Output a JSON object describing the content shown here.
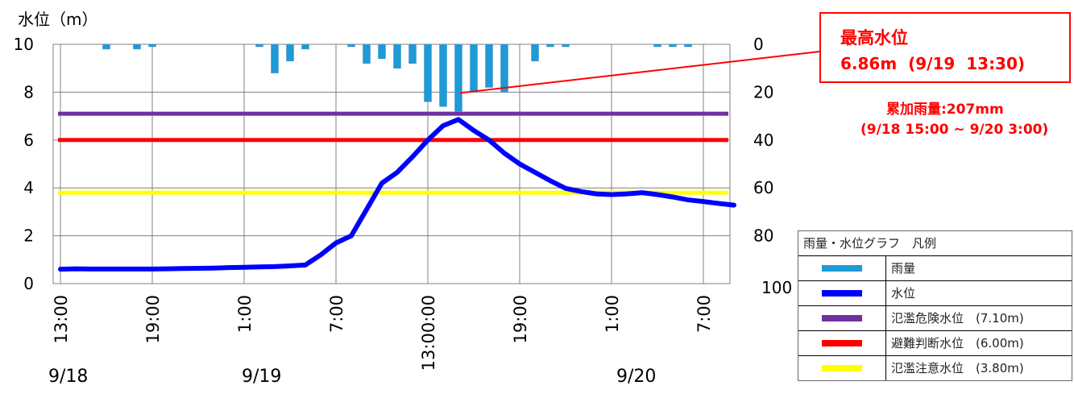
{
  "chart_data": {
    "type": "bar+line",
    "y_left_label": "水位（m）",
    "y_left_ticks": [
      "0",
      "2",
      "4",
      "6",
      "8",
      "10"
    ],
    "y_left_range": [
      0,
      10
    ],
    "y_right_ticks": [
      "0",
      "20",
      "40",
      "60",
      "80",
      "100"
    ],
    "y_right_range": [
      0,
      100
    ],
    "y_right_inverted": true,
    "x_tick_labels": [
      "13:00",
      "19:00",
      "1:00",
      "7:00",
      "13:00:00",
      "19:00",
      "1:00",
      "7:00"
    ],
    "date_labels": [
      "9/18",
      "9/19",
      "9/20"
    ],
    "x_hours_from_start": [
      0,
      1,
      2,
      3,
      4,
      5,
      6,
      7,
      8,
      9,
      10,
      11,
      12,
      13,
      14,
      15,
      16,
      17,
      18,
      19,
      20,
      21,
      22,
      23,
      24,
      25,
      26,
      27,
      28,
      29,
      30,
      31,
      32,
      33,
      34,
      35,
      36,
      37,
      38,
      39,
      40,
      41,
      42,
      43,
      44
    ],
    "rainfall_mm": [
      0,
      0,
      0,
      2,
      0,
      2,
      1,
      0,
      0,
      0,
      0,
      0,
      0,
      1,
      12,
      7,
      2,
      0,
      0,
      1,
      8,
      6,
      10,
      8,
      24,
      26,
      28,
      20,
      18,
      20,
      0,
      7,
      1,
      1,
      0,
      0,
      0,
      0,
      0,
      1,
      1,
      1,
      0,
      0,
      0
    ],
    "water_level_m": [
      0.6,
      0.62,
      0.61,
      0.61,
      0.61,
      0.61,
      0.61,
      0.62,
      0.63,
      0.64,
      0.65,
      0.67,
      0.68,
      0.7,
      0.71,
      0.74,
      0.78,
      1.2,
      1.7,
      2.0,
      3.1,
      4.2,
      4.65,
      5.3,
      6.0,
      6.6,
      6.86,
      6.4,
      6.0,
      5.45,
      5.0,
      4.65,
      4.3,
      3.98,
      3.85,
      3.75,
      3.72,
      3.75,
      3.8,
      3.72,
      3.62,
      3.5,
      3.43,
      3.35,
      3.28
    ],
    "thresholds": [
      {
        "name": "氾濫危険水位",
        "value": 7.1,
        "color": "#7030a0"
      },
      {
        "name": "避難判断水位",
        "value": 6.0,
        "color": "#ff0000"
      },
      {
        "name": "氾濫注意水位",
        "value": 3.8,
        "color": "#ffff00"
      }
    ],
    "series_colors": {
      "rainfall": "#1e9ad6",
      "water_level": "#0000ff"
    },
    "grid": true
  },
  "callout": {
    "title": "最高水位",
    "detail": "6.86m  (9/19  13:30)",
    "point_hour": 26,
    "point_level": 8
  },
  "cumulative": {
    "line1": "累加雨量:207mm",
    "line2": "(9/18 15:00 ~ 9/20 3:00)"
  },
  "legend": {
    "title": "雨量・水位グラフ　凡例",
    "items": [
      {
        "label": "雨量",
        "color": "#1e9ad6"
      },
      {
        "label": "水位",
        "color": "#0000ff"
      },
      {
        "label": "氾濫危険水位　(7.10m)",
        "color": "#7030a0"
      },
      {
        "label": "避難判断水位　(6.00m)",
        "color": "#ff0000"
      },
      {
        "label": "氾濫注意水位　(3.80m)",
        "color": "#ffff00"
      }
    ]
  }
}
